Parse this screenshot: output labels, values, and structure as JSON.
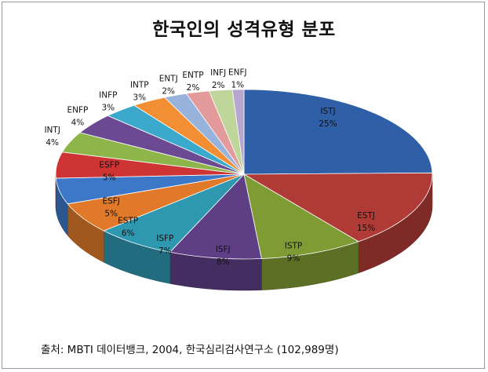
{
  "chart_data": {
    "type": "pie",
    "title": "한국인의 성격유형 분포",
    "style": "3d-exploded-pie",
    "categories": [
      "ISTJ",
      "ESTJ",
      "ISTP",
      "ISFJ",
      "ISFP",
      "ESTP",
      "ESFJ",
      "ESFP",
      "INTJ",
      "ENFP",
      "INFP",
      "INTP",
      "ENTJ",
      "ENTP",
      "INFJ",
      "ENFJ"
    ],
    "values": [
      25,
      15,
      9,
      8,
      7,
      6,
      5,
      5,
      4,
      4,
      3,
      3,
      2,
      2,
      2,
      1
    ],
    "value_labels": [
      "25%",
      "15%",
      "9%",
      "8%",
      "7%",
      "6%",
      "5%",
      "5%",
      "4%",
      "4%",
      "3%",
      "3%",
      "2%",
      "2%",
      "2%",
      "1%"
    ],
    "colors": [
      "#2F5FA6",
      "#B03A36",
      "#7E9B34",
      "#5E3F86",
      "#2E98B0",
      "#E07A2A",
      "#3C78C7",
      "#CE3434",
      "#8DB54A",
      "#6B4A93",
      "#3BA9CB",
      "#F28E34",
      "#98B3DB",
      "#E29A9A",
      "#BFD69A",
      "#B7A6CF"
    ]
  },
  "source_note": "출처: MBTI 데이터뱅크, 2004, 한국심리검사연구소 (102,989명)"
}
